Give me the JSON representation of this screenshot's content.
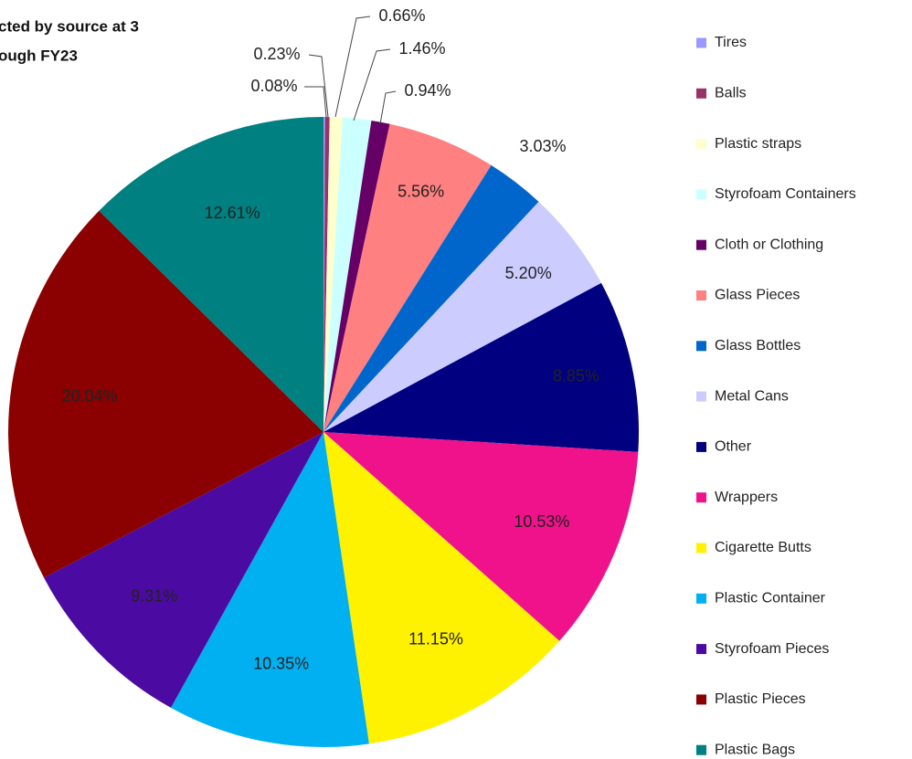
{
  "chart_data": {
    "type": "pie",
    "title_lines": [
      "cted by source at 3",
      "ough FY23"
    ],
    "categories": [
      "Tires",
      "Balls",
      "Plastic straps",
      "Styrofoam Containers",
      "Cloth or Clothing",
      "Glass Pieces",
      "Glass Bottles",
      "Metal Cans",
      "Other",
      "Wrappers",
      "Cigarette Butts",
      "Plastic Container",
      "Styrofoam Pieces",
      "Plastic Pieces",
      "Plastic Bags"
    ],
    "values": [
      0.08,
      0.23,
      0.66,
      1.46,
      0.94,
      5.56,
      3.03,
      5.2,
      8.85,
      10.53,
      11.15,
      10.35,
      9.31,
      20.04,
      12.61
    ],
    "value_labels": [
      "0.08%",
      "0.23%",
      "0.66%",
      "1.46%",
      "0.94%",
      "5.56%",
      "3.03%",
      "5.20%",
      "8.85%",
      "10.53%",
      "11.15%",
      "10.35%",
      "9.31%",
      "20.04%",
      "12.61%"
    ],
    "colors": [
      "#9999ff",
      "#993366",
      "#ffffcc",
      "#ccffff",
      "#660066",
      "#ff8080",
      "#0066cc",
      "#ccccff",
      "#000080",
      "#f0128a",
      "#fff200",
      "#00b0f0",
      "#4b0aa1",
      "#8b0000",
      "#008080"
    ],
    "legend": "right"
  }
}
